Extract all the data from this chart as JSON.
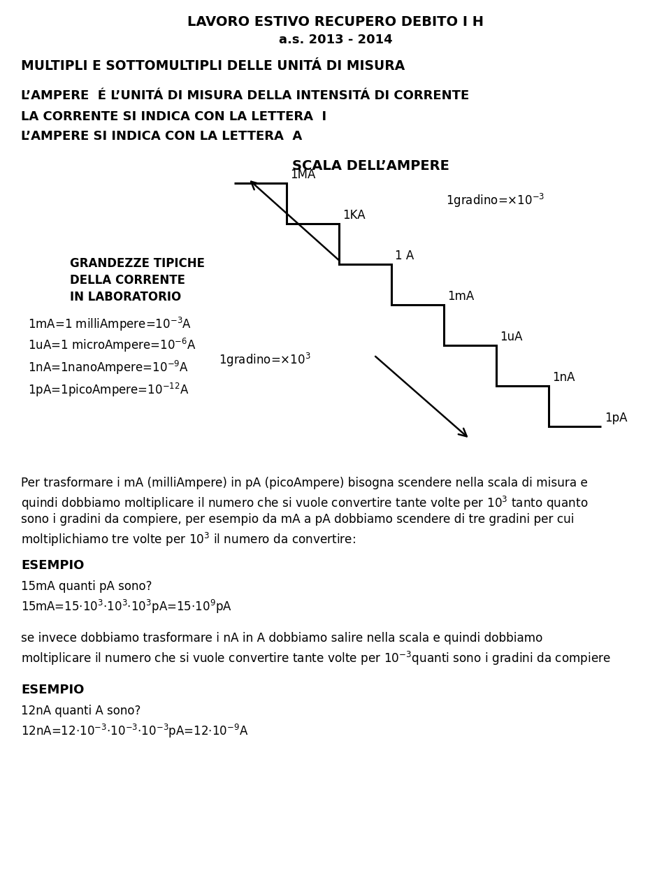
{
  "title1": "LAVORO ESTIVO RECUPERO DEBITO I H",
  "title2": "a.s. 2013 - 2014",
  "heading1": "MULTIPLI E SOTTOMULTIPLI DELLE UNITÁ DI MISURA",
  "line1": "L’AMPERE  É L’UNITÁ DI MISURA DELLA INTENSITÁ DI CORRENTE",
  "line2": "LA CORRENTE SI INDICA CON LA LETTERA  I",
  "line3": "L’AMPERE SI INDICA CON LA LETTERA  A",
  "scala_title": "SCALA DELL’AMPERE",
  "stair_labels": [
    "1MA",
    "1KA",
    "1 A",
    "1mA",
    "1uA",
    "1nA",
    "1pA"
  ],
  "left_title1": "GRANDEZZE TIPICHE",
  "left_title2": "DELLA CORRENTE",
  "left_title3": "IN LABORATORIO",
  "bg_color": "#ffffff"
}
